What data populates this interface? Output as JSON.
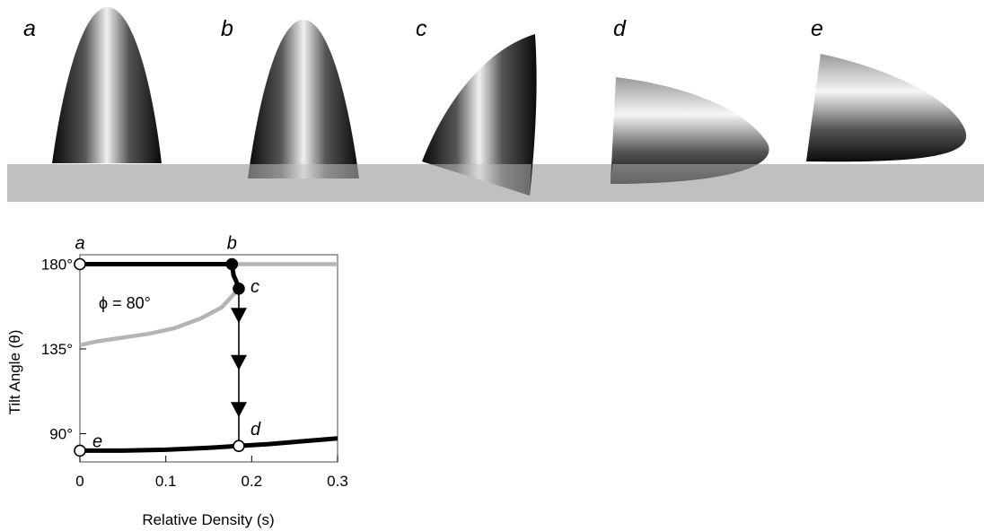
{
  "panels": [
    {
      "label": "a",
      "tilt": 180,
      "submerged": false
    },
    {
      "label": "b",
      "tilt": 180,
      "submerged": true
    },
    {
      "label": "c",
      "tilt": 160,
      "submerged": true
    },
    {
      "label": "d",
      "tilt": 82,
      "submerged": true
    },
    {
      "label": "e",
      "tilt": 80,
      "submerged": false
    }
  ],
  "colors": {
    "water": "#c0c0c0",
    "stable_branch": "#000000",
    "unstable_branch": "#b4b4b4",
    "marker_fill_open": "#ffffff",
    "marker_fill_closed": "#000000"
  },
  "chart_data": {
    "type": "line",
    "title": "",
    "xlabel": "Relative Density (s)",
    "ylabel": "Tilt Angle (θ)",
    "annotation": "ϕ = 80°",
    "xlim": [
      0,
      0.3
    ],
    "ylim": [
      75,
      185
    ],
    "xticks": [
      0,
      0.1,
      0.2,
      0.3
    ],
    "xtick_labels": [
      "0",
      "0.1",
      "0.2",
      "0.3"
    ],
    "yticks": [
      90,
      135,
      180
    ],
    "ytick_labels": [
      "90°",
      "135°",
      "180°"
    ],
    "series": [
      {
        "style": "stable",
        "x": [
          0,
          0.177
        ],
        "y": [
          180,
          180
        ]
      },
      {
        "style": "stable",
        "x": [
          0.177,
          0.179,
          0.182,
          0.185
        ],
        "y": [
          180,
          174,
          171,
          167
        ]
      },
      {
        "style": "stable",
        "x": [
          0,
          0.05,
          0.1,
          0.15,
          0.185,
          0.22,
          0.26,
          0.3
        ],
        "y": [
          81,
          81,
          81.5,
          82.5,
          83.5,
          84.5,
          86,
          87.5
        ]
      },
      {
        "style": "unstable",
        "x": [
          0.177,
          0.2,
          0.25,
          0.3
        ],
        "y": [
          180,
          180,
          180,
          180
        ]
      },
      {
        "style": "unstable",
        "x": [
          0,
          0.02,
          0.05,
          0.08,
          0.11,
          0.14,
          0.165,
          0.185
        ],
        "y": [
          137,
          139,
          141,
          143,
          146,
          151,
          157,
          167
        ]
      },
      {
        "style": "jump",
        "x": [
          0.185,
          0.185
        ],
        "y": [
          167,
          84
        ]
      }
    ],
    "points": [
      {
        "label": "a",
        "x": 0,
        "y": 180,
        "filled": false
      },
      {
        "label": "b",
        "x": 0.177,
        "y": 180,
        "filled": true
      },
      {
        "label": "c",
        "x": 0.185,
        "y": 167,
        "filled": true
      },
      {
        "label": "d",
        "x": 0.185,
        "y": 83.5,
        "filled": false
      },
      {
        "label": "e",
        "x": 0,
        "y": 81,
        "filled": false
      }
    ],
    "arrows_y": [
      153,
      128,
      103
    ]
  }
}
